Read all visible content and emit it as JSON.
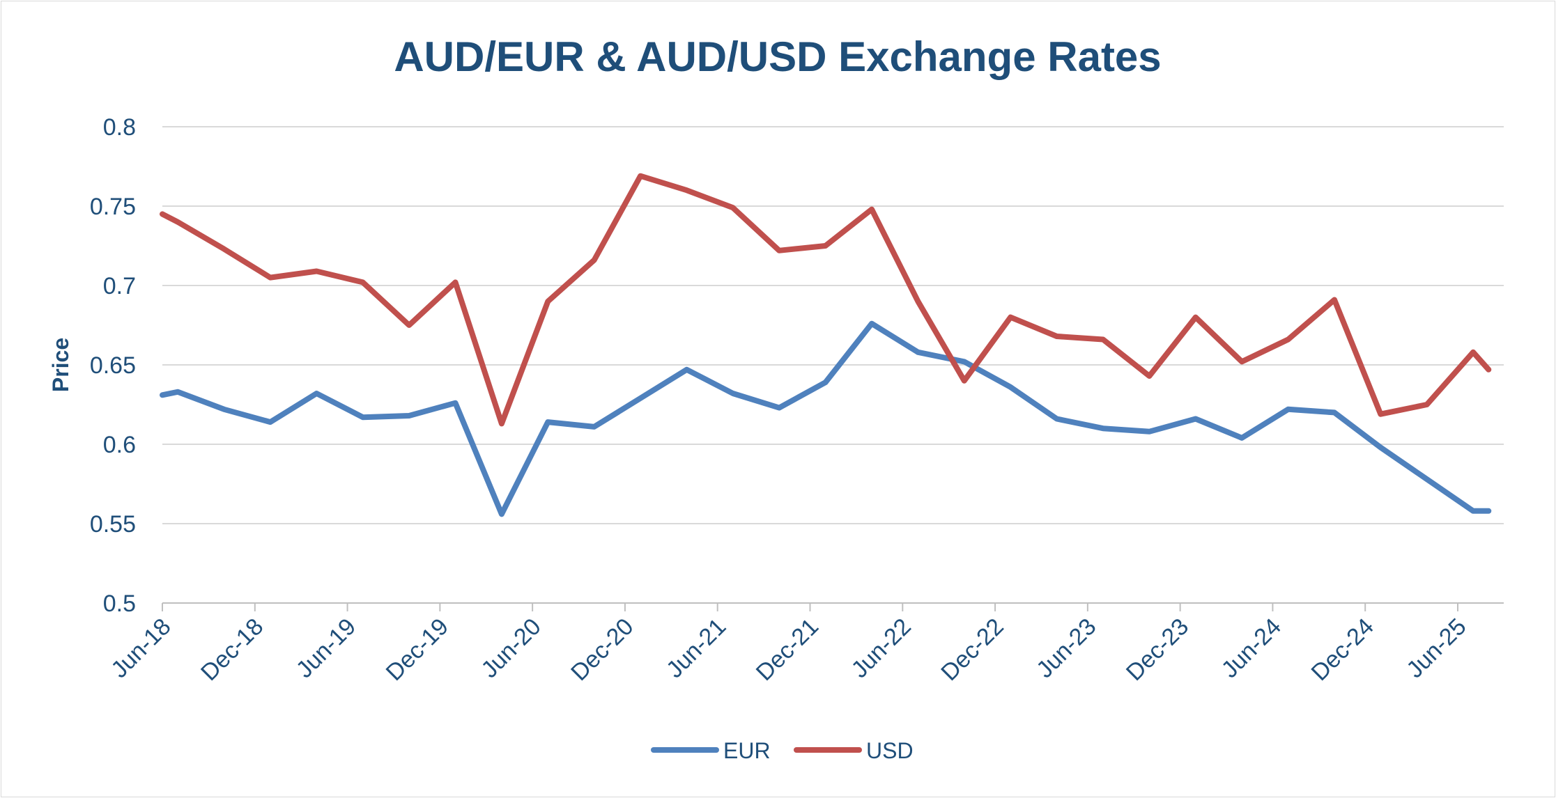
{
  "chart_data": {
    "type": "line",
    "title": "AUD/EUR & AUD/USD Exchange Rates",
    "xlabel": "",
    "ylabel": "Price",
    "ylim": [
      0.5,
      0.8
    ],
    "y_ticks": [
      "0.5",
      "0.55",
      "0.6",
      "0.65",
      "0.7",
      "0.75",
      "0.8"
    ],
    "x_tick_labels": [
      "Jun-18",
      "Dec-18",
      "Jun-19",
      "Dec-19",
      "Jun-20",
      "Dec-20",
      "Jun-21",
      "Dec-21",
      "Jun-22",
      "Dec-22",
      "Jun-23",
      "Dec-23",
      "Jun-24",
      "Dec-24",
      "Jun-25"
    ],
    "grid": true,
    "legend_position": "bottom",
    "x_months": [
      0,
      1,
      4,
      7,
      10,
      13,
      16,
      19,
      22,
      25,
      28,
      31,
      34,
      37,
      40,
      43,
      46,
      49,
      52,
      55,
      58,
      61,
      64,
      67,
      70,
      73,
      76,
      79,
      82,
      85,
      86
    ],
    "series": [
      {
        "name": "EUR",
        "color": "#4f81bd",
        "values": [
          0.631,
          0.633,
          0.622,
          0.614,
          0.632,
          0.617,
          0.618,
          0.626,
          0.556,
          0.614,
          0.611,
          0.629,
          0.647,
          0.632,
          0.623,
          0.639,
          0.676,
          0.658,
          0.652,
          0.636,
          0.616,
          0.61,
          0.608,
          0.616,
          0.604,
          0.622,
          0.62,
          0.598,
          0.578,
          0.558,
          0.558
        ]
      },
      {
        "name": "USD",
        "color": "#c0504d",
        "values": [
          0.745,
          0.74,
          0.723,
          0.705,
          0.709,
          0.702,
          0.675,
          0.702,
          0.613,
          0.69,
          0.716,
          0.769,
          0.76,
          0.749,
          0.722,
          0.725,
          0.748,
          0.69,
          0.64,
          0.68,
          0.668,
          0.666,
          0.643,
          0.68,
          0.652,
          0.666,
          0.691,
          0.619,
          0.625,
          0.658,
          0.647
        ]
      }
    ]
  }
}
